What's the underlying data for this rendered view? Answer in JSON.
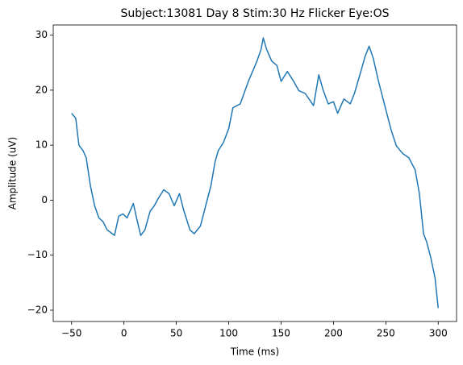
{
  "chart_data": {
    "type": "line",
    "title": "Subject:13081 Day 8 Stim:30 Hz Flicker Eye:OS",
    "xlabel": "Time (ms)",
    "ylabel": "Amplitude (uV)",
    "x": [
      -50,
      -46,
      -43,
      -39,
      -36,
      -32,
      -28,
      -24,
      -20,
      -16,
      -9,
      -5,
      -1,
      3,
      9,
      12,
      16,
      20,
      25,
      29,
      33,
      38,
      43,
      48,
      53,
      57,
      63,
      67,
      73,
      79,
      83,
      87,
      90,
      95,
      100,
      104,
      111,
      119,
      127,
      131,
      133,
      136,
      141,
      146,
      150,
      156,
      162,
      167,
      173,
      181,
      186,
      190,
      195,
      200,
      204,
      210,
      216,
      220,
      226,
      230,
      234,
      238,
      243,
      249,
      255,
      260,
      266,
      272,
      278,
      282,
      286,
      289,
      293,
      297,
      300
    ],
    "series": [
      {
        "name": "amplitude",
        "color": "#1f77b4",
        "values": [
          15.8,
          14.9,
          10,
          9,
          7.7,
          2.6,
          -1,
          -3.2,
          -3.9,
          -5.4,
          -6.4,
          -2.9,
          -2.5,
          -3.2,
          -0.6,
          -3.2,
          -6.4,
          -5.4,
          -2,
          -1,
          0.4,
          1.9,
          1.2,
          -1,
          1.2,
          -1.8,
          -5.4,
          -6.1,
          -4.7,
          -0.3,
          2.6,
          7,
          9,
          10.5,
          13,
          16.8,
          17.5,
          21.7,
          25.3,
          27.5,
          29.5,
          27.5,
          25.3,
          24.5,
          21.6,
          23.4,
          21.6,
          19.9,
          19.4,
          17.2,
          22.8,
          20.1,
          17.5,
          17.9,
          15.8,
          18.4,
          17.5,
          19.4,
          23.3,
          26,
          28,
          25.8,
          21.6,
          17.2,
          12.8,
          9.9,
          8.5,
          7.7,
          5.5,
          1.2,
          -6.1,
          -7.6,
          -10.5,
          -14.2,
          -19.6
        ]
      }
    ],
    "xlim": [
      -67.5,
      317.5
    ],
    "xticks": [
      {
        "value": -50,
        "label": "−50"
      },
      0,
      50,
      100,
      150,
      200,
      250,
      300
    ],
    "ylim": [
      -22.05,
      31.85
    ],
    "yticks": [
      {
        "value": -20,
        "label": "−20"
      },
      {
        "value": -10,
        "label": "−10"
      },
      0,
      10,
      20,
      30
    ],
    "grid": false
  }
}
